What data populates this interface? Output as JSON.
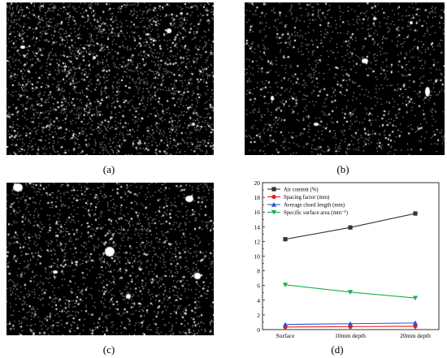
{
  "panels": [
    {
      "id": "a",
      "label": "(a)"
    },
    {
      "id": "b",
      "label": "(b)"
    },
    {
      "id": "c",
      "label": "(c)"
    },
    {
      "id": "d",
      "label": "(d)"
    }
  ],
  "chart_data": {
    "type": "line",
    "categories": [
      "Surface",
      "10mm depth",
      "20mm depth"
    ],
    "ylim": [
      0,
      20
    ],
    "yticks": [
      "0",
      "2",
      "4",
      "6",
      "8",
      "10",
      "12",
      "14",
      "16",
      "18",
      "20"
    ],
    "grid": false,
    "legend_position": "top-left",
    "series": [
      {
        "name": "Air content (%)",
        "values": [
          12.3,
          13.9,
          15.8
        ],
        "color": "#333333",
        "marker": "square"
      },
      {
        "name": "Spacing factor (mm)",
        "values": [
          0.35,
          0.4,
          0.45
        ],
        "color": "#e02020",
        "marker": "circle"
      },
      {
        "name": "Average chord length (mm)",
        "values": [
          0.7,
          0.8,
          0.9
        ],
        "color": "#2a52d8",
        "marker": "triangle-up"
      },
      {
        "name": "Specific surface area (mm⁻¹)",
        "values": [
          6.1,
          5.1,
          4.3
        ],
        "color": "#19b04a",
        "marker": "triangle-down"
      }
    ]
  }
}
